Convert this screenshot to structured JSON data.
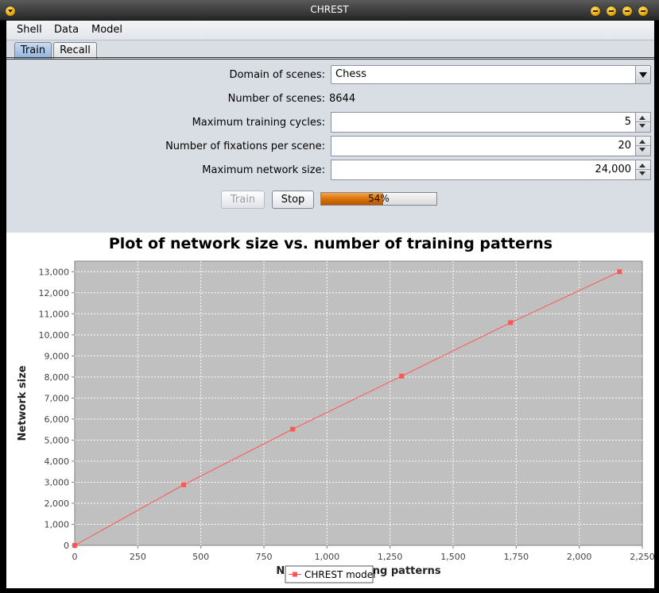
{
  "window": {
    "title": "CHREST"
  },
  "menu": [
    "Shell",
    "Data",
    "Model"
  ],
  "tabs": [
    {
      "label": "Train",
      "active": true
    },
    {
      "label": "Recall",
      "active": false
    }
  ],
  "form": {
    "domain_label": "Domain of scenes:",
    "domain_value": "Chess",
    "scenes_label": "Number of scenes:",
    "scenes_value": "8644",
    "cycles_label": "Maximum training cycles:",
    "cycles_value": "5",
    "fixations_label": "Number of fixations per scene:",
    "fixations_value": "20",
    "netsize_label": "Maximum network size:",
    "netsize_value": "24,000"
  },
  "controls": {
    "train_label": "Train",
    "stop_label": "Stop",
    "progress_label": "54%",
    "progress_value": 0.54
  },
  "chart_data": {
    "type": "line",
    "title": "Plot of network size vs. number of training patterns",
    "xlabel": "Number of training patterns",
    "ylabel": "Network size",
    "xlim": [
      0,
      2250
    ],
    "ylim": [
      0,
      13500
    ],
    "xticks": [
      0,
      250,
      500,
      750,
      1000,
      1250,
      1500,
      1750,
      2000,
      2250
    ],
    "xtick_labels": [
      "0",
      "250",
      "500",
      "750",
      "1,000",
      "1,250",
      "1,500",
      "1,750",
      "2,000",
      "2,250"
    ],
    "yticks": [
      0,
      1000,
      2000,
      3000,
      4000,
      5000,
      6000,
      7000,
      8000,
      9000,
      10000,
      11000,
      12000,
      13000
    ],
    "ytick_labels": [
      "0",
      "1,000",
      "2,000",
      "3,000",
      "4,000",
      "5,000",
      "6,000",
      "7,000",
      "8,000",
      "9,000",
      "10,000",
      "11,000",
      "12,000",
      "13,000"
    ],
    "grid": true,
    "legend_placement": "bottom-center",
    "series": [
      {
        "name": "CHREST model",
        "color": "#ff5555",
        "x": [
          0,
          432,
          864,
          1296,
          1728,
          2160
        ],
        "y": [
          0,
          2880,
          5520,
          8040,
          10580,
          13000
        ]
      }
    ],
    "plot_background": "#c0c0c0"
  }
}
